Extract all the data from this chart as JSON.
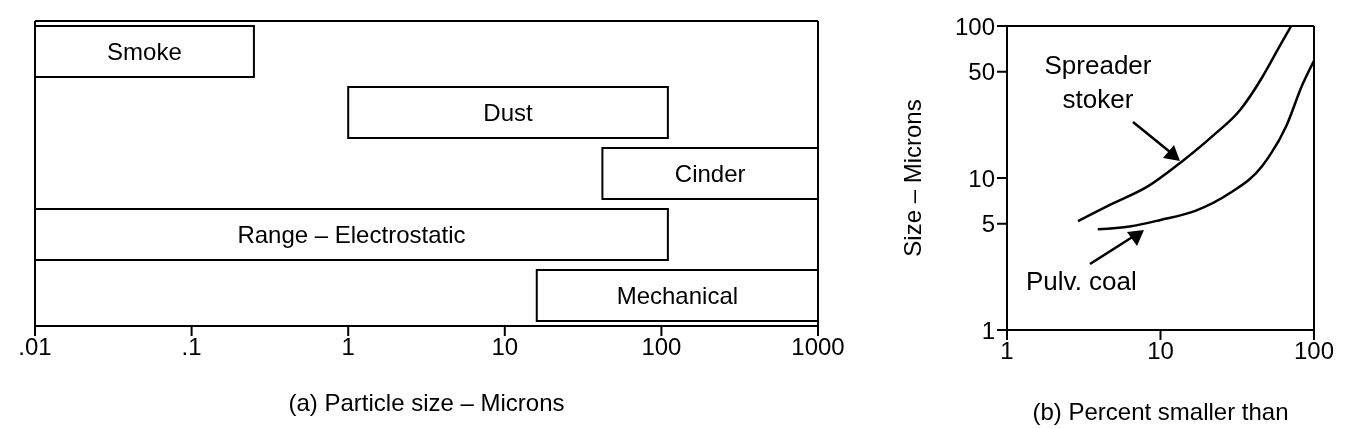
{
  "chart_data": [
    {
      "type": "bar",
      "orientation": "horizontal",
      "log": "x",
      "tick_labels": "x",
      "xlabel": "(a) Particle size – Microns",
      "categories": [
        "Smoke",
        "Dust",
        "Cinder",
        "Range – Electrostatic",
        "Mechanical"
      ],
      "values": [
        0.24,
        109,
        958,
        109.99,
        984
      ],
      "base": [
        0.01,
        1,
        42,
        0.01,
        16
      ],
      "color": "#ffffff",
      "xlim": [
        0.01,
        1000
      ],
      "xticks": [
        {
          "value": 0.01,
          "label": ".01"
        },
        {
          "value": 0.1,
          "label": ".1"
        },
        1,
        10,
        100,
        1000
      ]
    },
    {
      "type": "line",
      "log": "xy",
      "xlabel": "(b) Percent smaller than",
      "ylabel": "Size – Microns",
      "xlim": [
        1,
        100
      ],
      "ylim": [
        1,
        100
      ],
      "xticks": [
        1,
        10,
        100
      ],
      "yticks": [
        1,
        5,
        10,
        50,
        100
      ],
      "series": [
        {
          "name": "Spreader stoker",
          "color": "#000000",
          "x": [
            2.9,
            4.9,
            8.1,
            14,
            22,
            33,
            46,
            59,
            71
          ],
          "values": [
            5.2,
            6.8,
            8.7,
            13,
            19,
            28,
            46,
            72,
            100
          ]
        },
        {
          "name": "Pulv. coal",
          "color": "#000000",
          "x": [
            3.9,
            6.3,
            10,
            17,
            28,
            46,
            66,
            84,
            100
          ],
          "values": [
            4.6,
            4.8,
            5.3,
            6.1,
            7.9,
            12,
            22,
            41,
            59
          ]
        }
      ]
    }
  ]
}
